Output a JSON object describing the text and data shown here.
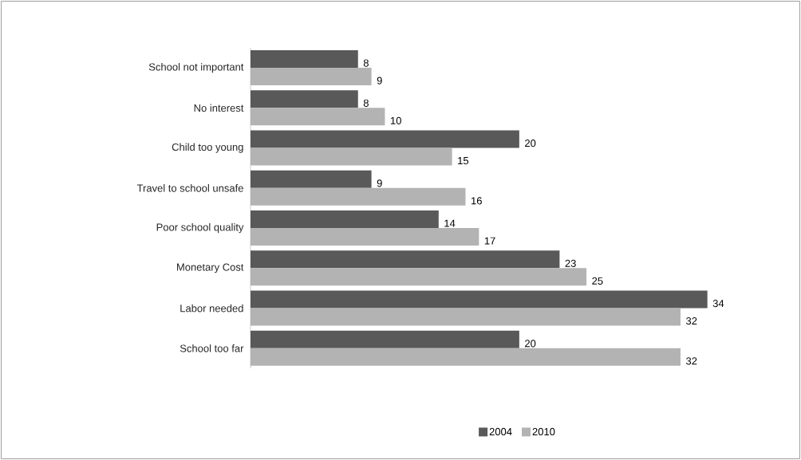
{
  "chart_data": {
    "type": "bar",
    "orientation": "horizontal",
    "categories": [
      "School not important",
      "No interest",
      "Child too young",
      "Travel to school unsafe",
      "Poor school quality",
      "Monetary Cost",
      "Labor needed",
      "School too far"
    ],
    "series": [
      {
        "name": "2004",
        "color": "#595959",
        "values": [
          8,
          8,
          20,
          9,
          14,
          23,
          34,
          20
        ]
      },
      {
        "name": "2010",
        "color": "#b3b3b3",
        "values": [
          9,
          10,
          15,
          16,
          17,
          25,
          32,
          32
        ]
      }
    ],
    "data_labels": true,
    "legend": "bottom"
  }
}
